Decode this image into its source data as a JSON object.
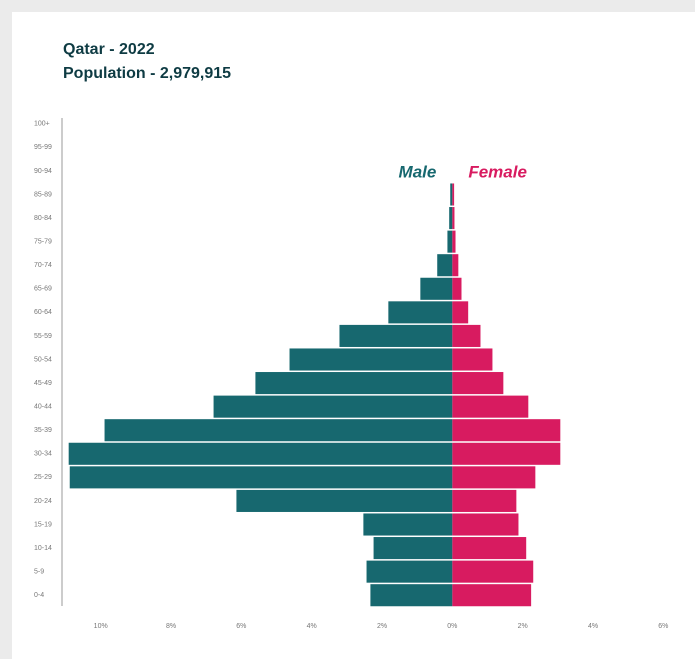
{
  "chart_data": {
    "type": "pyramid",
    "title": "Qatar - 2022",
    "subtitle": "Population - 2,979,915",
    "categories": [
      "0-4",
      "5-9",
      "10-14",
      "15-19",
      "20-24",
      "25-29",
      "30-34",
      "35-39",
      "40-44",
      "45-49",
      "50-54",
      "55-59",
      "60-64",
      "65-69",
      "70-74",
      "75-79",
      "80-84",
      "85-89",
      "90-94",
      "95-99",
      "100+"
    ],
    "series": [
      {
        "name": "Male",
        "color": "#17686f",
        "values": [
          -2.33,
          -2.44,
          -2.24,
          -2.53,
          -6.14,
          -10.88,
          -10.91,
          -9.89,
          -6.79,
          -5.6,
          -4.63,
          -3.21,
          -1.82,
          -0.91,
          -0.43,
          -0.14,
          -0.09,
          -0.06,
          0,
          0,
          0
        ]
      },
      {
        "name": "Female",
        "color": "#d81b60",
        "values": [
          2.24,
          2.3,
          2.1,
          1.88,
          1.82,
          2.36,
          3.07,
          3.07,
          2.16,
          1.45,
          1.14,
          0.8,
          0.45,
          0.26,
          0.17,
          0.09,
          0.06,
          0.05,
          0,
          0,
          0
        ]
      }
    ],
    "xlim": [
      -11.1,
      6.9
    ],
    "xticks": [
      {
        "value": -10,
        "label": "10%"
      },
      {
        "value": -8,
        "label": "8%"
      },
      {
        "value": -6,
        "label": "6%"
      },
      {
        "value": -4,
        "label": "4%"
      },
      {
        "value": -2,
        "label": "2%"
      },
      {
        "value": 0,
        "label": "0%"
      },
      {
        "value": 2,
        "label": "2%"
      },
      {
        "value": 4,
        "label": "4%"
      },
      {
        "value": 6,
        "label": "6%"
      }
    ]
  }
}
